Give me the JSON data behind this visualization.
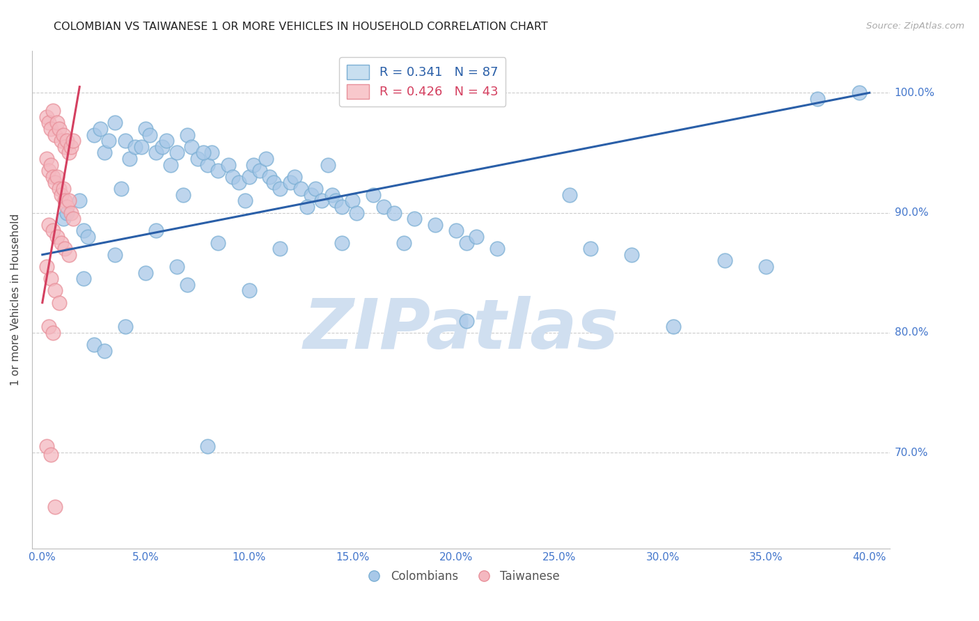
{
  "title": "COLOMBIAN VS TAIWANESE 1 OR MORE VEHICLES IN HOUSEHOLD CORRELATION CHART",
  "source": "Source: ZipAtlas.com",
  "ylabel": "1 or more Vehicles in Household",
  "x_tick_labels": [
    "0.0%",
    "5.0%",
    "10.0%",
    "15.0%",
    "20.0%",
    "25.0%",
    "30.0%",
    "35.0%",
    "40.0%"
  ],
  "x_tick_values": [
    0,
    5,
    10,
    15,
    20,
    25,
    30,
    35,
    40
  ],
  "y_tick_labels": [
    "70.0%",
    "80.0%",
    "90.0%",
    "100.0%"
  ],
  "y_tick_values": [
    70,
    80,
    90,
    100
  ],
  "xlim": [
    -0.5,
    41
  ],
  "ylim": [
    62,
    103.5
  ],
  "legend_blue_label_r": "R = 0.341",
  "legend_blue_label_n": "N = 87",
  "legend_pink_label_r": "R = 0.426",
  "legend_pink_label_n": "N = 43",
  "legend_bottom_colombians": "Colombians",
  "legend_bottom_taiwanese": "Taiwanese",
  "blue_marker_color": "#a8c8e8",
  "blue_marker_edge": "#7bafd4",
  "pink_marker_color": "#f4b8c0",
  "pink_marker_edge": "#e8909a",
  "blue_line_color": "#2a5fa8",
  "pink_line_color": "#d44060",
  "title_color": "#222222",
  "axis_label_color": "#444444",
  "tick_label_color": "#4477cc",
  "grid_color": "#cccccc",
  "watermark_color": "#d0dff0",
  "blue_scatter_x": [
    1.0,
    1.2,
    1.8,
    2.0,
    2.5,
    2.8,
    3.0,
    3.2,
    3.5,
    4.0,
    4.2,
    4.5,
    5.0,
    5.2,
    5.5,
    5.8,
    6.0,
    6.2,
    6.5,
    7.0,
    7.2,
    7.5,
    8.0,
    8.2,
    8.5,
    9.0,
    9.2,
    9.5,
    10.0,
    10.2,
    10.5,
    11.0,
    11.2,
    11.5,
    12.0,
    12.2,
    12.5,
    13.0,
    13.2,
    13.5,
    14.0,
    14.2,
    14.5,
    15.0,
    15.2,
    16.0,
    16.5,
    17.0,
    18.0,
    19.0,
    20.0,
    20.5,
    21.0,
    22.0,
    25.5,
    26.5,
    28.5,
    30.5,
    33.0,
    35.0,
    37.5,
    39.5,
    3.8,
    6.8,
    9.8,
    12.8,
    4.8,
    7.8,
    10.8,
    13.8,
    2.2,
    5.5,
    8.5,
    11.5,
    14.5,
    17.5,
    20.5,
    2.0,
    7.0,
    10.0,
    3.5,
    6.5,
    4.0,
    2.5,
    3.0,
    5.0,
    8.0
  ],
  "blue_scatter_y": [
    89.5,
    90.0,
    91.0,
    88.5,
    96.5,
    97.0,
    95.0,
    96.0,
    97.5,
    96.0,
    94.5,
    95.5,
    97.0,
    96.5,
    95.0,
    95.5,
    96.0,
    94.0,
    95.0,
    96.5,
    95.5,
    94.5,
    94.0,
    95.0,
    93.5,
    94.0,
    93.0,
    92.5,
    93.0,
    94.0,
    93.5,
    93.0,
    92.5,
    92.0,
    92.5,
    93.0,
    92.0,
    91.5,
    92.0,
    91.0,
    91.5,
    91.0,
    90.5,
    91.0,
    90.0,
    91.5,
    90.5,
    90.0,
    89.5,
    89.0,
    88.5,
    87.5,
    88.0,
    87.0,
    91.5,
    87.0,
    86.5,
    80.5,
    86.0,
    85.5,
    99.5,
    100.0,
    92.0,
    91.5,
    91.0,
    90.5,
    95.5,
    95.0,
    94.5,
    94.0,
    88.0,
    88.5,
    87.5,
    87.0,
    87.5,
    87.5,
    81.0,
    84.5,
    84.0,
    83.5,
    86.5,
    85.5,
    80.5,
    79.0,
    78.5,
    85.0,
    70.5
  ],
  "pink_scatter_x": [
    0.2,
    0.3,
    0.4,
    0.5,
    0.6,
    0.7,
    0.8,
    0.9,
    1.0,
    1.1,
    1.2,
    1.3,
    1.4,
    1.5,
    0.2,
    0.3,
    0.4,
    0.5,
    0.6,
    0.7,
    0.8,
    0.9,
    1.0,
    1.1,
    1.2,
    1.3,
    1.4,
    1.5,
    0.3,
    0.5,
    0.7,
    0.9,
    1.1,
    1.3,
    0.2,
    0.4,
    0.6,
    0.8,
    0.3,
    0.5,
    0.2,
    0.4,
    0.6
  ],
  "pink_scatter_y": [
    98.0,
    97.5,
    97.0,
    98.5,
    96.5,
    97.5,
    97.0,
    96.0,
    96.5,
    95.5,
    96.0,
    95.0,
    95.5,
    96.0,
    94.5,
    93.5,
    94.0,
    93.0,
    92.5,
    93.0,
    92.0,
    91.5,
    92.0,
    91.0,
    90.5,
    91.0,
    90.0,
    89.5,
    89.0,
    88.5,
    88.0,
    87.5,
    87.0,
    86.5,
    85.5,
    84.5,
    83.5,
    82.5,
    80.5,
    80.0,
    70.5,
    69.8,
    65.5
  ],
  "blue_line_x": [
    0,
    40
  ],
  "blue_line_y": [
    86.5,
    100.0
  ],
  "pink_line_x": [
    0.0,
    1.8
  ],
  "pink_line_y": [
    82.5,
    100.5
  ]
}
